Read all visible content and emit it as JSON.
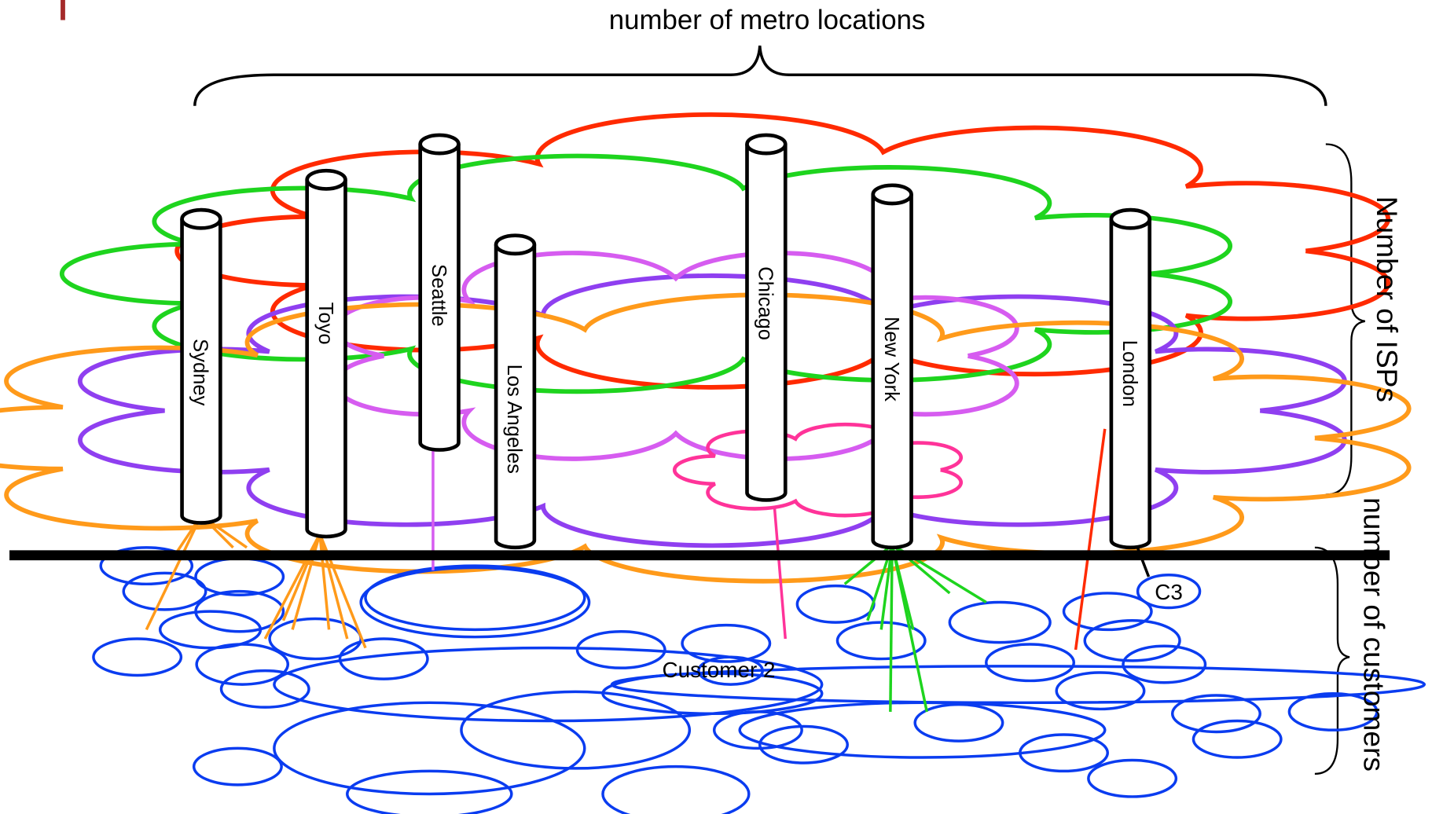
{
  "header": {
    "title": "number of metro locations"
  },
  "axes": {
    "isps": "Number of ISPs",
    "customers": "number of customers"
  },
  "pops": [
    "Sydney",
    "Toyo",
    "Seattle",
    "Los Angeles",
    "Chicago",
    "New York",
    "London"
  ],
  "customers": {
    "c2": "Customer 2",
    "c3": "C3"
  }
}
